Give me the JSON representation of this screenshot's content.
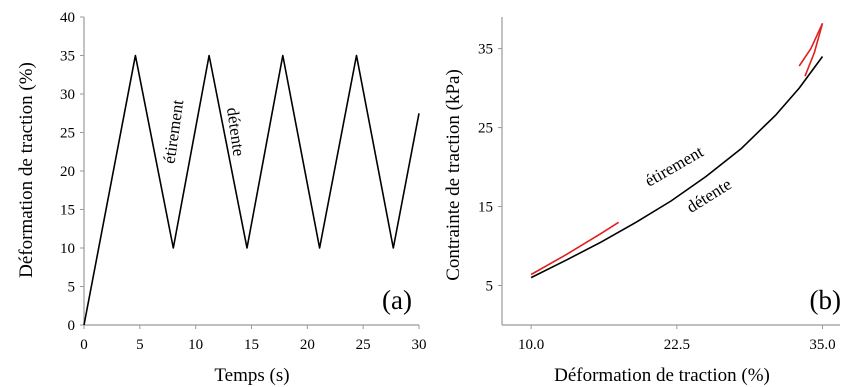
{
  "chart_data": [
    {
      "panel": "a",
      "type": "line",
      "panel_label": "(a)",
      "xlabel": "Temps (s)",
      "ylabel": "Déformation de traction (%)",
      "xlim": [
        0,
        30
      ],
      "ylim": [
        0,
        40
      ],
      "xticks": [
        0,
        5,
        10,
        15,
        20,
        25,
        30
      ],
      "yticks": [
        0,
        5,
        10,
        15,
        20,
        25,
        30,
        35,
        40
      ],
      "grid": false,
      "series": [
        {
          "color": "#000000",
          "x": [
            0,
            4.6,
            8,
            11.2,
            14.6,
            17.8,
            21.1,
            24.4,
            27.7,
            30
          ],
          "y": [
            0,
            35,
            10,
            35,
            10,
            35,
            10,
            35,
            10,
            27.5
          ]
        }
      ],
      "annotations": [
        {
          "text": "étirement",
          "x": 8.5,
          "y": 25,
          "rotate": -82
        },
        {
          "text": "détente",
          "x": 13.1,
          "y": 25,
          "rotate": 82
        }
      ]
    },
    {
      "panel": "b",
      "type": "line",
      "panel_label": "(b)",
      "xlabel": "Déformation de traction (%)",
      "ylabel": "Contrainte de traction (kPa)",
      "xlim": [
        7.5,
        36.5
      ],
      "ylim": [
        0,
        39
      ],
      "xticks": [
        "10.0",
        "22.5",
        "35.0"
      ],
      "yticks": [
        5,
        15,
        25,
        35
      ],
      "grid": false,
      "series": [
        {
          "color": "#000000",
          "x": [
            10,
            13,
            16,
            19,
            22,
            25,
            28,
            31,
            33,
            35
          ],
          "y": [
            6.0,
            8.2,
            10.5,
            13.0,
            15.7,
            18.8,
            22.3,
            26.6,
            30.0,
            34.0
          ]
        },
        {
          "color": "#e0201b",
          "x": [
            10,
            13,
            16,
            17.5
          ],
          "y": [
            6.4,
            8.9,
            11.6,
            13.0
          ]
        },
        {
          "color": "#e0201b",
          "x": [
            33.0,
            34.0,
            35.0
          ],
          "y": [
            32.8,
            35.0,
            38.2
          ]
        },
        {
          "color": "#e0201b",
          "x": [
            33.5,
            34.3,
            35.0
          ],
          "y": [
            31.5,
            34.5,
            38.2
          ]
        }
      ],
      "annotations": [
        {
          "text": "étirement",
          "x": 22.5,
          "y": 19.5,
          "rotate": -30
        },
        {
          "text": "détente",
          "x": 25.5,
          "y": 15.8,
          "rotate": -32
        }
      ]
    }
  ]
}
